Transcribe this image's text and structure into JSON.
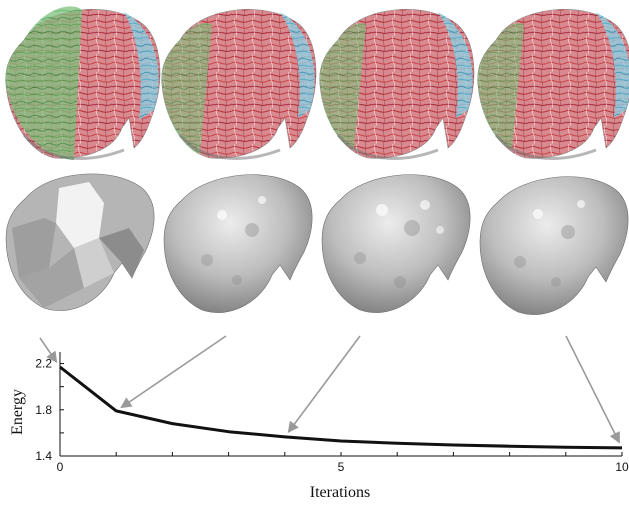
{
  "figure": {
    "panel_rows": [
      {
        "row": "field-visualization",
        "count": 4
      },
      {
        "row": "surface-reconstruction",
        "count": 4
      }
    ],
    "colors": {
      "field_red": "#c9434b",
      "field_green": "#3fa84a",
      "field_cyan": "#35b4d6",
      "surface_gray": "#bdbdbd",
      "curve": "#111111",
      "arrow": "#9a9a9a"
    },
    "arrow_targets": [
      0,
      1,
      4,
      10
    ]
  },
  "chart_data": {
    "type": "line",
    "title": "",
    "xlabel": "Iterations",
    "ylabel": "Energy",
    "xlim": [
      0,
      10
    ],
    "ylim": [
      1.4,
      2.3
    ],
    "xticks": [
      "0",
      "5",
      "10"
    ],
    "yticks": [
      "1.4",
      "1.8",
      "2.2"
    ],
    "grid": false,
    "series": [
      {
        "x": [
          0,
          1,
          2,
          3,
          4,
          5,
          6,
          7,
          8,
          9,
          10
        ],
        "values": [
          2.17,
          1.79,
          1.68,
          1.61,
          1.565,
          1.53,
          1.51,
          1.495,
          1.485,
          1.475,
          1.47
        ]
      }
    ]
  }
}
